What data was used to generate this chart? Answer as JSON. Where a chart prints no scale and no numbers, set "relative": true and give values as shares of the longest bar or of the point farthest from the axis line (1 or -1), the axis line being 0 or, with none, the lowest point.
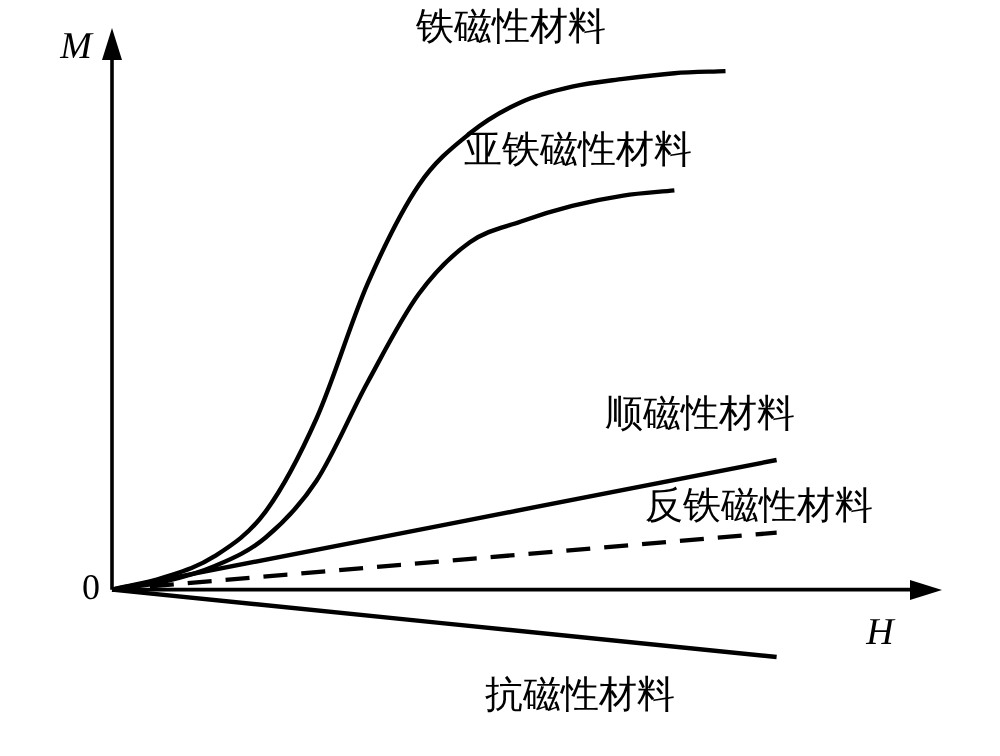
{
  "chart_data": {
    "type": "line",
    "relative": true,
    "xlabel": "H",
    "ylabel": "M",
    "annotations": [
      "0"
    ],
    "legend": false,
    "grid": false,
    "marker": "none",
    "categories": [
      null,
      null,
      null,
      null,
      null,
      null,
      null,
      null,
      null,
      null,
      null,
      null,
      null,
      null,
      null,
      null,
      null
    ],
    "series": [
      {
        "name": "铁磁性材料",
        "color": "#000000",
        "line_style": "solid",
        "values": [
          0,
          0.023,
          0.064,
          0.15,
          0.33,
          0.59,
          0.78,
          0.88,
          0.94,
          0.97,
          0.985,
          0.996,
          1,
          null,
          null,
          null,
          null
        ]
      },
      {
        "name": "亚铁磁性材料",
        "color": "#000000",
        "line_style": "solid",
        "values": [
          0,
          0.015,
          0.045,
          0.1,
          0.21,
          0.4,
          0.57,
          0.67,
          0.71,
          0.74,
          0.76,
          0.77,
          null,
          null,
          null,
          null,
          null
        ]
      },
      {
        "name": "顺磁性材料",
        "color": "#000000",
        "line_style": "solid",
        "values": [
          0,
          null,
          null,
          null,
          null,
          null,
          null,
          null,
          null,
          null,
          null,
          null,
          null,
          0.25,
          null,
          null,
          null
        ]
      },
      {
        "name": "反铁磁性材料",
        "color": "#000000",
        "line_style": "dashed",
        "values": [
          0,
          null,
          null,
          null,
          null,
          null,
          null,
          null,
          null,
          null,
          null,
          null,
          null,
          0.11,
          null,
          null,
          null
        ]
      },
      {
        "name": "抗磁性材料",
        "color": "#000000",
        "line_style": "solid",
        "values": [
          0,
          null,
          null,
          null,
          null,
          null,
          null,
          null,
          null,
          null,
          null,
          null,
          null,
          -0.13,
          null,
          null,
          null
        ]
      }
    ]
  }
}
